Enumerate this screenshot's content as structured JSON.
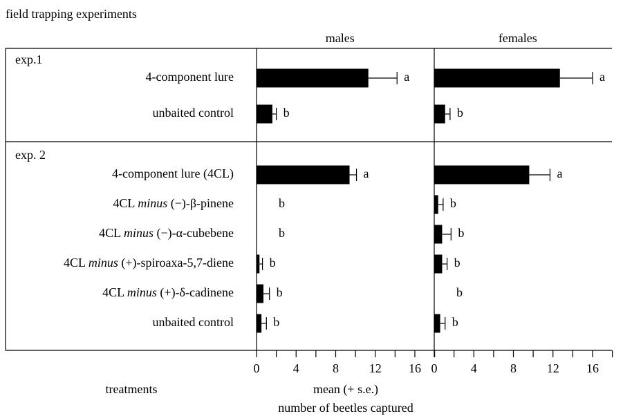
{
  "title": "field trapping experiments",
  "row_axis_label": "treatments",
  "x_label": [
    "mean (+ s.e.)",
    "number of beetles captured"
  ],
  "groups": [
    {
      "label": "exp.1",
      "treatments": [
        [
          "4-component lure"
        ],
        [
          "unbaited control"
        ]
      ]
    },
    {
      "label": "exp. 2",
      "treatments": [
        [
          "4-component lure (4CL)"
        ],
        [
          "4CL ",
          "minus",
          " (−)-β-pinene"
        ],
        [
          "4CL ",
          "minus",
          " (−)-α-cubebene"
        ],
        [
          "4CL ",
          "minus",
          " (+)-spiroaxa-5,7-diene"
        ],
        [
          "4CL ",
          "minus",
          " (+)-δ-cadinene"
        ],
        [
          "unbaited control"
        ]
      ]
    }
  ],
  "chart_data": [
    {
      "type": "hbar",
      "title": "males",
      "color": "#000000",
      "values": [
        [
          11.3,
          1.6
        ],
        [
          9.4,
          0,
          0,
          0.3,
          0.7,
          0.5
        ]
      ],
      "errors": [
        [
          2.9,
          0.4
        ],
        [
          0.7,
          null,
          null,
          0.3,
          0.6,
          0.5
        ]
      ],
      "letters": [
        [
          "a",
          "b"
        ],
        [
          "a",
          "b",
          "b",
          "b",
          "b",
          "b"
        ]
      ],
      "xlim": [
        0,
        18
      ],
      "xticks": [
        0,
        4,
        8,
        12,
        16
      ],
      "minor_xticks": [
        2,
        6,
        10,
        14,
        18
      ]
    },
    {
      "type": "hbar",
      "title": "females",
      "color": "#000000",
      "values": [
        [
          12.7,
          1.1
        ],
        [
          9.6,
          0.4,
          0.8,
          0.8,
          0,
          0.6
        ]
      ],
      "errors": [
        [
          3.3,
          0.5
        ],
        [
          2.1,
          0.5,
          0.9,
          0.5,
          null,
          0.5
        ]
      ],
      "letters": [
        [
          "a",
          "b"
        ],
        [
          "a",
          "b",
          "b",
          "b",
          "b",
          "b"
        ]
      ],
      "xlim": [
        0,
        18
      ],
      "xticks": [
        0,
        4,
        8,
        12,
        16
      ],
      "minor_xticks": [
        2,
        6,
        10,
        14,
        18
      ]
    }
  ]
}
